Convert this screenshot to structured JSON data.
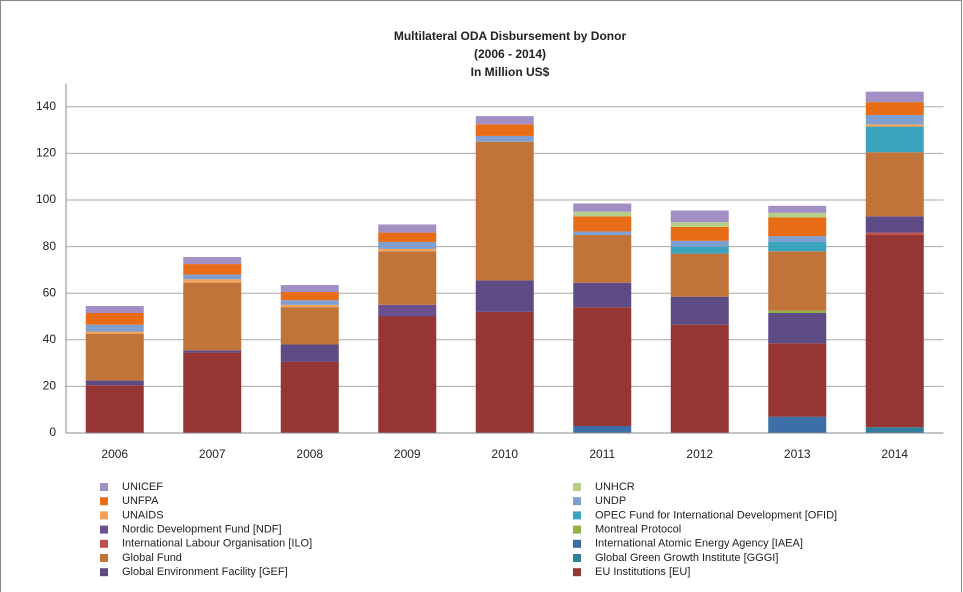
{
  "chart_data": {
    "type": "stacked_bar",
    "title": [
      "Multilateral ODA Disbursement by Donor",
      "(2006 - 2014)",
      "In Million US$"
    ],
    "categories": [
      "2006",
      "2007",
      "2008",
      "2009",
      "2010",
      "2011",
      "2012",
      "2013",
      "2014"
    ],
    "ylim": [
      0,
      150
    ],
    "yticks": [
      0,
      20,
      40,
      60,
      80,
      100,
      120,
      140
    ],
    "grid": true,
    "series": [
      {
        "name": "Global Green Growth Institute [GGGI]",
        "color": "#2e7d9a",
        "values": [
          0,
          0,
          0,
          0,
          0,
          0,
          0,
          0,
          2.5
        ]
      },
      {
        "name": "International Atomic Energy Agency [IAEA]",
        "color": "#3c6ea8",
        "values": [
          0,
          0,
          0,
          0,
          0,
          3,
          0,
          7,
          0
        ]
      },
      {
        "name": "EU Institutions [EU]",
        "color": "#963634",
        "values": [
          20.5,
          34.5,
          30.5,
          50,
          52,
          51,
          46.5,
          31.5,
          82.5
        ]
      },
      {
        "name": "International Labour Organisation [ILO]",
        "color": "#c0504d",
        "values": [
          0,
          0,
          0,
          0,
          0,
          0,
          0,
          0,
          1
        ]
      },
      {
        "name": "Global Environment Facility [GEF]",
        "color": "#5e4a84",
        "values": [
          2,
          1,
          7.5,
          0,
          13.5,
          10.5,
          12,
          13,
          7
        ]
      },
      {
        "name": "Nordic Development Fund [NDF]",
        "color": "#6b4f8e",
        "values": [
          0,
          0,
          0,
          5,
          0,
          0,
          0,
          0,
          0
        ]
      },
      {
        "name": "Montreal Protocol",
        "color": "#8fb347",
        "values": [
          0,
          0,
          0,
          0,
          0,
          0,
          0,
          1,
          0
        ]
      },
      {
        "name": "Global Fund",
        "color": "#c0743a",
        "values": [
          20,
          29,
          16,
          23,
          59.5,
          20.5,
          18.5,
          25.5,
          27.5
        ]
      },
      {
        "name": "OPEC Fund for International Development [OFID]",
        "color": "#3aa3bd",
        "values": [
          0,
          0,
          0,
          0,
          0,
          0,
          3,
          4,
          11
        ]
      },
      {
        "name": "UNAIDS",
        "color": "#f2a05a",
        "values": [
          1,
          1.5,
          1,
          1,
          0,
          0,
          0,
          0,
          1
        ]
      },
      {
        "name": "UNDP",
        "color": "#7f9fd0",
        "values": [
          3,
          2,
          2,
          3,
          2.5,
          1.5,
          2.5,
          2.5,
          4
        ]
      },
      {
        "name": "UNFPA",
        "color": "#e86c16",
        "values": [
          5,
          4.5,
          3.5,
          4,
          5,
          6.5,
          6,
          8,
          5.5
        ]
      },
      {
        "name": "UNHCR",
        "color": "#b5cf8a",
        "values": [
          0,
          0,
          0,
          0,
          0,
          2,
          2,
          2,
          0
        ]
      },
      {
        "name": "UNICEF",
        "color": "#a28fc4",
        "values": [
          3,
          3,
          3,
          3.5,
          3.5,
          3.5,
          5,
          3,
          4.5
        ]
      }
    ]
  }
}
